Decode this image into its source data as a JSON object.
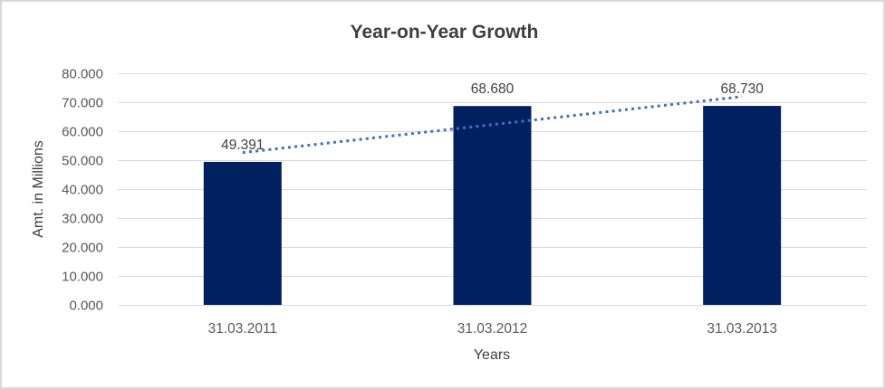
{
  "chart_data": {
    "type": "bar",
    "title": "Year-on-Year Growth",
    "xlabel": "Years",
    "ylabel": "Amt. in Millions",
    "categories": [
      "31.03.2011",
      "31.03.2012",
      "31.03.2013"
    ],
    "values": [
      49.391,
      68.68,
      68.73
    ],
    "value_labels": [
      "49.391",
      "68.680",
      "68.730"
    ],
    "ylim": [
      0,
      80
    ],
    "ytick_step": 10,
    "ytick_labels": [
      "0.000",
      "10.000",
      "20.000",
      "30.000",
      "40.000",
      "50.000",
      "60.000",
      "70.000",
      "80.000"
    ],
    "grid": true,
    "legend": "none",
    "trendline": {
      "type": "linear",
      "style": "dotted",
      "color": "#4072BE"
    },
    "colors": {
      "bar": "#002060",
      "gridline": "#d9d9d9",
      "tick_text": "#595959",
      "category_text": "#595959",
      "value_label_text": "#404040",
      "title_text": "#3f3f3f",
      "border": "#d9d9d9",
      "background": "#ffffff"
    }
  }
}
